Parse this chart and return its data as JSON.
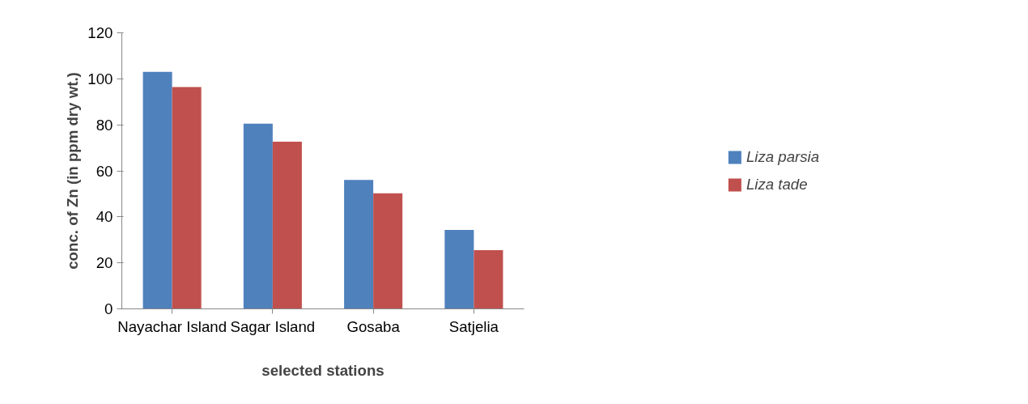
{
  "chart_data": {
    "type": "bar",
    "xlabel": "selected stations",
    "ylabel": "conc. of Zn (in ppm dry wt.)",
    "categories": [
      "Nayachar Island",
      "Sagar Island",
      "Gosaba",
      "Satjelia"
    ],
    "series": [
      {
        "name": "Liza parsia",
        "color": "#4f81bd",
        "values": [
          103,
          80.5,
          56,
          34.3
        ]
      },
      {
        "name": "Liza tade",
        "color": "#c0504d",
        "values": [
          96.4,
          72.7,
          50.2,
          25.5
        ]
      }
    ],
    "ylim": [
      0,
      120
    ],
    "yticks": [
      0,
      20,
      40,
      60,
      80,
      100,
      120
    ],
    "grid": false,
    "legend": "right"
  }
}
